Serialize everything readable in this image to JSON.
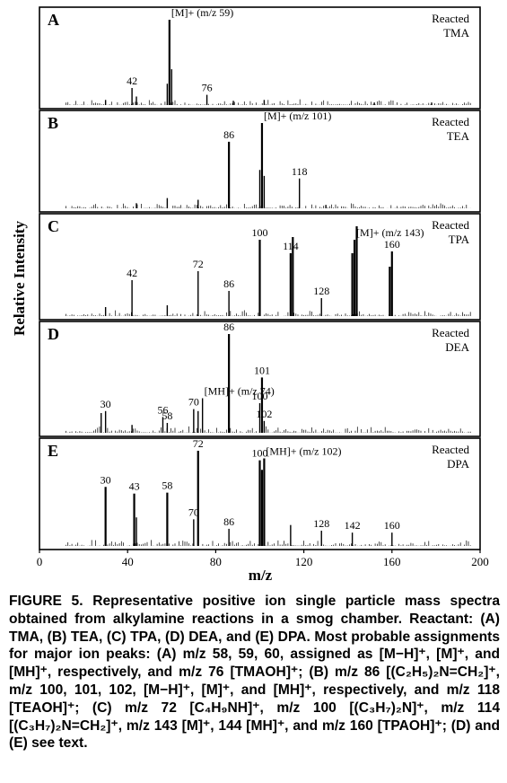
{
  "figure": {
    "ylabel": "Relative Intensity",
    "xlabel": "m/z",
    "xticks": [
      "0",
      "40",
      "80",
      "120",
      "160",
      "200"
    ]
  },
  "caption": {
    "label": "FIGURE 5.",
    "text": "Representative positive ion single particle mass spectra obtained from alkylamine reactions in a smog chamber. Reactant: (A) TMA, (B) TEA, (C) TPA, (D) DEA, and (E) DPA. Most probable assignments for major ion peaks: (A) m/z 58, 59, 60, assigned as [M−H]⁺, [M]⁺, and [MH]⁺, respectively, and m/z 76 [TMAOH]⁺; (B) m/z 86 [(C₂H₅)₂N=CH₂]⁺, m/z 100, 101, 102, [M−H]⁺, [M]⁺, and [MH]⁺, respectively, and m/z 118 [TEAOH]⁺; (C) m/z 72 [C₄H₉NH]⁺, m/z 100 [(C₃H₇)₂N]⁺, m/z 114 [(C₃H₇)₂N=CH₂]⁺, m/z 143 [M]⁺, 144 [MH]⁺, and m/z 160 [TPAOH]⁺; (D) and (E) see text."
  },
  "chart_data": [
    {
      "type": "bar",
      "panel": "A",
      "label_lines": [
        "Reacted",
        "TMA"
      ],
      "xlim": [
        0,
        200
      ],
      "ylim": [
        0,
        1
      ],
      "peaks": [
        {
          "x": 42,
          "y": 0.2,
          "label": "42"
        },
        {
          "x": 58,
          "y": 0.25
        },
        {
          "x": 59,
          "y": 1.0,
          "label": "[M]+ (m/z 59)"
        },
        {
          "x": 60,
          "y": 0.42
        },
        {
          "x": 76,
          "y": 0.12,
          "label": "76"
        },
        {
          "x": 30,
          "y": 0.06
        },
        {
          "x": 44,
          "y": 0.1
        },
        {
          "x": 88,
          "y": 0.05
        },
        {
          "x": 102,
          "y": 0.06
        },
        {
          "x": 152,
          "y": 0.03
        },
        {
          "x": 178,
          "y": 0.03
        }
      ]
    },
    {
      "type": "bar",
      "panel": "B",
      "label_lines": [
        "Reacted",
        "TEA"
      ],
      "xlim": [
        0,
        200
      ],
      "ylim": [
        0,
        1
      ],
      "peaks": [
        {
          "x": 58,
          "y": 0.12
        },
        {
          "x": 72,
          "y": 0.1
        },
        {
          "x": 86,
          "y": 0.78,
          "label": "86"
        },
        {
          "x": 100,
          "y": 0.45
        },
        {
          "x": 101,
          "y": 1.0,
          "label": "[M]+ (m/z 101)"
        },
        {
          "x": 102,
          "y": 0.38
        },
        {
          "x": 118,
          "y": 0.35,
          "label": "118"
        },
        {
          "x": 44,
          "y": 0.06
        },
        {
          "x": 130,
          "y": 0.04
        }
      ]
    },
    {
      "type": "bar",
      "panel": "C",
      "label_lines": [
        "Reacted",
        "TPA"
      ],
      "xlim": [
        0,
        200
      ],
      "ylim": [
        0,
        1
      ],
      "peaks": [
        {
          "x": 30,
          "y": 0.1
        },
        {
          "x": 42,
          "y": 0.4,
          "label": "42"
        },
        {
          "x": 58,
          "y": 0.12
        },
        {
          "x": 72,
          "y": 0.5,
          "label": "72"
        },
        {
          "x": 86,
          "y": 0.28,
          "label": "86"
        },
        {
          "x": 100,
          "y": 0.85,
          "label": "100"
        },
        {
          "x": 114,
          "y": 0.7,
          "label": "114"
        },
        {
          "x": 115,
          "y": 0.88
        },
        {
          "x": 128,
          "y": 0.2,
          "label": "128"
        },
        {
          "x": 142,
          "y": 0.7
        },
        {
          "x": 143,
          "y": 0.85,
          "label": "[M]+ (m/z 143)"
        },
        {
          "x": 144,
          "y": 1.0
        },
        {
          "x": 159,
          "y": 0.55
        },
        {
          "x": 160,
          "y": 0.72,
          "label": "160"
        }
      ]
    },
    {
      "type": "bar",
      "panel": "D",
      "label_lines": [
        "Reacted",
        "DEA"
      ],
      "xlim": [
        0,
        200
      ],
      "ylim": [
        0,
        1
      ],
      "peaks": [
        {
          "x": 28,
          "y": 0.2
        },
        {
          "x": 30,
          "y": 0.22,
          "label": "30"
        },
        {
          "x": 42,
          "y": 0.08
        },
        {
          "x": 56,
          "y": 0.16,
          "label": "56"
        },
        {
          "x": 58,
          "y": 0.1,
          "label": "58"
        },
        {
          "x": 70,
          "y": 0.24,
          "label": "70"
        },
        {
          "x": 72,
          "y": 0.22
        },
        {
          "x": 74,
          "y": 0.35,
          "label": "[MH]+ (m/z 74)"
        },
        {
          "x": 86,
          "y": 1.0,
          "label": "86"
        },
        {
          "x": 100,
          "y": 0.3,
          "label": "100"
        },
        {
          "x": 101,
          "y": 0.56,
          "label": "101"
        },
        {
          "x": 102,
          "y": 0.12,
          "label": "102"
        }
      ]
    },
    {
      "type": "bar",
      "panel": "E",
      "label_lines": [
        "Reacted",
        "DPA"
      ],
      "xlim": [
        0,
        200
      ],
      "ylim": [
        0,
        1
      ],
      "peaks": [
        {
          "x": 30,
          "y": 0.62,
          "label": "30"
        },
        {
          "x": 43,
          "y": 0.55,
          "label": "43"
        },
        {
          "x": 44,
          "y": 0.3
        },
        {
          "x": 58,
          "y": 0.56,
          "label": "58"
        },
        {
          "x": 70,
          "y": 0.28,
          "label": "70"
        },
        {
          "x": 72,
          "y": 1.0,
          "label": "72"
        },
        {
          "x": 86,
          "y": 0.18,
          "label": "86"
        },
        {
          "x": 100,
          "y": 0.9,
          "label": "100"
        },
        {
          "x": 101,
          "y": 0.8
        },
        {
          "x": 102,
          "y": 0.92,
          "label": "[MH]+ (m/z 102)"
        },
        {
          "x": 114,
          "y": 0.22
        },
        {
          "x": 128,
          "y": 0.16,
          "label": "128"
        },
        {
          "x": 142,
          "y": 0.14,
          "label": "142"
        },
        {
          "x": 160,
          "y": 0.14,
          "label": "160"
        }
      ]
    }
  ]
}
